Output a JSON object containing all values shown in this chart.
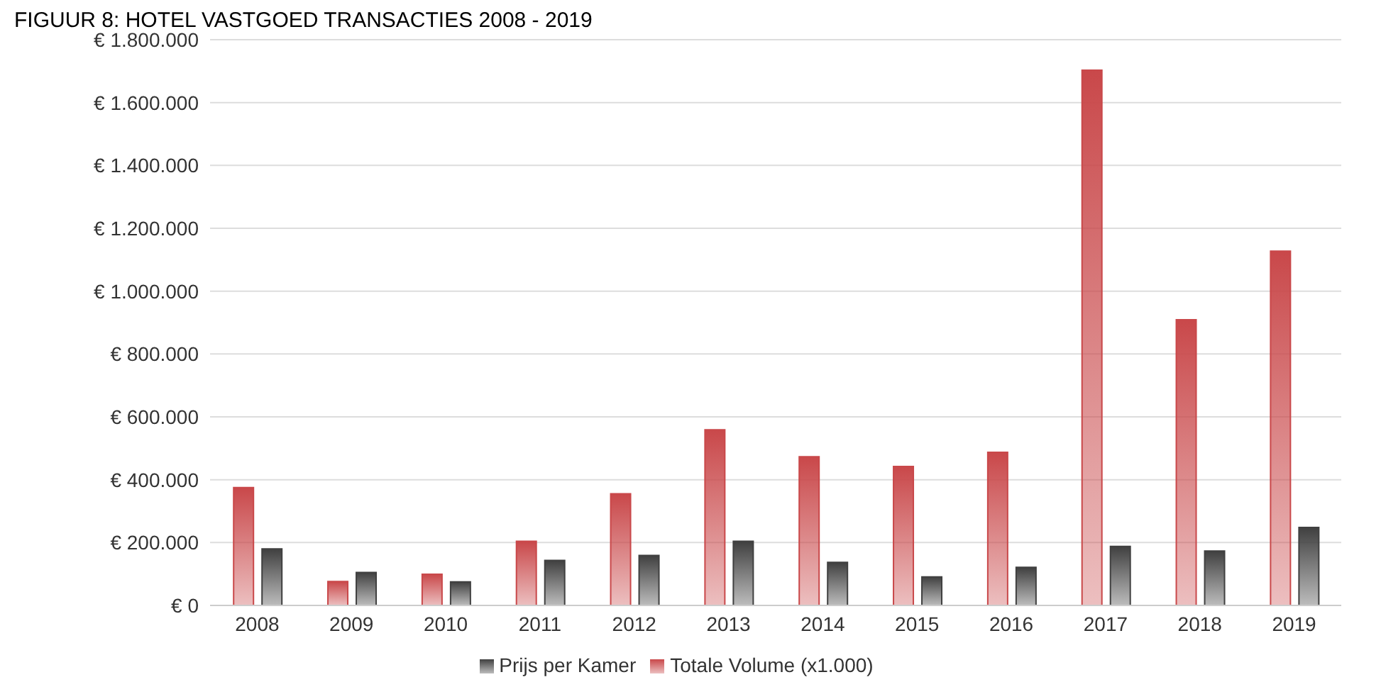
{
  "chart_data": {
    "type": "bar",
    "title": "FIGUUR 8: HOTEL VASTGOED TRANSACTIES 2008 - 2019",
    "categories": [
      "2008",
      "2009",
      "2010",
      "2011",
      "2012",
      "2013",
      "2014",
      "2015",
      "2016",
      "2017",
      "2018",
      "2019"
    ],
    "series": [
      {
        "name": "Totale Volume (x1.000)",
        "color": "#c9484a",
        "values": [
          375000,
          76000,
          99000,
          204000,
          355000,
          559000,
          473000,
          442000,
          487000,
          1703000,
          909000,
          1127000
        ]
      },
      {
        "name": "Prijs per Kamer",
        "color": "#404040",
        "values": [
          180000,
          105000,
          75000,
          143000,
          159000,
          204000,
          137000,
          91000,
          121000,
          188000,
          173000,
          248000
        ]
      }
    ],
    "ylim": [
      0,
      1800000
    ],
    "yticks": [
      {
        "value": 0,
        "label": "€ 0"
      },
      {
        "value": 200000,
        "label": "€ 200.000"
      },
      {
        "value": 400000,
        "label": "€ 400.000"
      },
      {
        "value": 600000,
        "label": "€ 600.000"
      },
      {
        "value": 800000,
        "label": "€ 800.000"
      },
      {
        "value": 1000000,
        "label": "€ 1.000.000"
      },
      {
        "value": 1200000,
        "label": "€ 1.200.000"
      },
      {
        "value": 1400000,
        "label": "€ 1.400.000"
      },
      {
        "value": 1600000,
        "label": "€ 1.600.000"
      },
      {
        "value": 1800000,
        "label": "€ 1.800.000"
      }
    ],
    "grid": "y",
    "legend": "bottom"
  }
}
